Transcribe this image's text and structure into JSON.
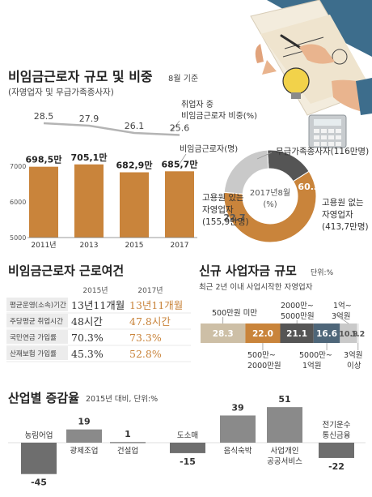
{
  "colors": {
    "accent": "#C9843B",
    "gray": "#7A7A7A",
    "gray_dark": "#555555",
    "gray_light": "#C9C9C9",
    "blue_gray": "#4E6679",
    "beige": "#CDBFA6",
    "line": "#B4B4B4"
  },
  "section1": {
    "title": "비임금근로자 규모 및 비중",
    "note": "8월 기준",
    "subtitle": "(자영업자 및 무급가족종사자)",
    "ratio_label_line1": "취업자 중",
    "ratio_label_line2": "비임금근로자 비중(%)",
    "count_label": "비임금근로자(명)"
  },
  "section2": {
    "title": "비임금근로자 근로여건",
    "headers": [
      "2015년",
      "2017년"
    ],
    "rows": [
      {
        "label": "평균운영(소속)기간",
        "v2015": "13년11개월",
        "v2017": "13년11개월"
      },
      {
        "label": "주당평균 취업시간",
        "v2015": "48시간",
        "v2017": "47.8시간"
      },
      {
        "label": "국민연금 가입률",
        "v2015": "70.3%",
        "v2017": "73.3%"
      },
      {
        "label": "산재보험 가입률",
        "v2015": "45.3%",
        "v2017": "52.8%"
      }
    ]
  },
  "section3": {
    "title": "신규 사업자금 규모",
    "unit": "단위:%",
    "subtitle": "최근 2년 이내 사업시작한 자영업자",
    "labels": {
      "s0": "500만원 미만",
      "s1_l1": "500만~",
      "s1_l2": "2000만원",
      "s2_l1": "2000만~",
      "s2_l2": "5000만원",
      "s3_l1": "5000만~",
      "s3_l2": "1억원",
      "s4_l1": "1억~",
      "s4_l2": "3억원",
      "s5_l1": "3억원",
      "s5_l2": "이상"
    }
  },
  "section4": {
    "title": "산업별 증감율",
    "unit": "2015년 대비, 단위:%"
  },
  "chart_data": [
    {
      "type": "line",
      "x": [
        "2011년",
        "2013",
        "2015",
        "2017"
      ],
      "series": [
        {
          "name": "취업자 중 비임금근로자 비중(%)",
          "values": [
            28.5,
            27.9,
            26.1,
            25.6
          ]
        }
      ],
      "value_labels": [
        "28.5",
        "27.9",
        "26.1",
        "25.6"
      ]
    },
    {
      "type": "bar",
      "categories": [
        "2011년",
        "2013",
        "2015",
        "2017"
      ],
      "values": [
        6985,
        7051,
        6829,
        6857
      ],
      "value_labels": [
        "698,5만",
        "705,1만",
        "682,9만",
        "685,7만"
      ],
      "yticks": [
        "7000",
        "6000",
        "5000"
      ],
      "ylim": [
        5000,
        7200
      ],
      "series": [
        {
          "name": "비임금근로자(명)",
          "values": [
            6985,
            7051,
            6829,
            6857
          ]
        }
      ]
    },
    {
      "type": "pie",
      "center_line1": "2017년8월",
      "center_line2": "(%)",
      "slices": [
        {
          "label_lines": [
            "무급가족종사자(116만명)"
          ],
          "value": 16.9,
          "value_label": "16.9",
          "color": "#555555"
        },
        {
          "label_lines": [
            "고용원 없는",
            "자영업자",
            "(413,7만명)"
          ],
          "value": 60.3,
          "value_label": "60.3",
          "color": "#C9843B"
        },
        {
          "label_lines": [
            "고용원 있는",
            "자영업자",
            "(155,9만명)"
          ],
          "value": 22.7,
          "value_label": "22.7",
          "color": "#C9C9C9"
        }
      ]
    },
    {
      "type": "bar",
      "orientation": "horizontal-stacked",
      "categories": [
        "500만원 미만",
        "500만~2000만원",
        "2000만~5000만원",
        "5000만~1억원",
        "1억~3억원",
        "3억원 이상"
      ],
      "values": [
        28.3,
        22.0,
        21.1,
        16.6,
        10.9,
        1.2
      ],
      "value_labels": [
        "28.3",
        "22.0",
        "21.1",
        "16.6",
        "10.9",
        "1.2"
      ],
      "colors": [
        "#CDBFA6",
        "#C9843B",
        "#555555",
        "#4E6679",
        "#C9C9C9",
        "#EDEDED"
      ]
    },
    {
      "type": "bar",
      "categories": [
        "농림어업",
        "광제조업",
        "건설업",
        "도소매",
        "음식숙박",
        "사업개인 공공서비스",
        "전기운수 통신금융"
      ],
      "category_lines": [
        [
          "농림어업"
        ],
        [
          "광제조업"
        ],
        [
          "건설업"
        ],
        [
          "도소매"
        ],
        [
          "음식숙박"
        ],
        [
          "사업개인",
          "공공서비스"
        ],
        [
          "전기운수",
          "통신금융"
        ]
      ],
      "values": [
        -45,
        19,
        1,
        -15,
        39,
        51,
        -22
      ],
      "value_labels": [
        "-45",
        "19",
        "1",
        "-15",
        "39",
        "51",
        "-22"
      ]
    }
  ]
}
